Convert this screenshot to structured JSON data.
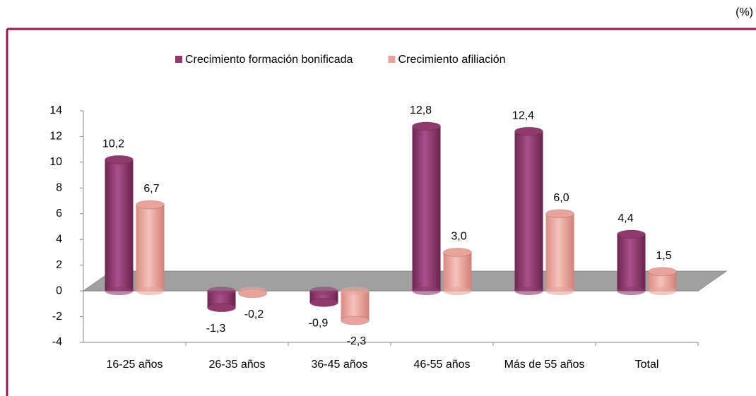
{
  "chart_data": {
    "type": "bar",
    "unit_label": "(%)",
    "categories": [
      "16-25 años",
      "26-35 años",
      "36-45 años",
      "46-55 años",
      "Más de 55 años",
      "Total"
    ],
    "series": [
      {
        "name": "Crecimiento formación bonificada",
        "color": "#8e3a6e",
        "values": [
          10.2,
          -1.3,
          -0.9,
          12.8,
          12.4,
          4.4
        ],
        "value_labels": [
          "10,2",
          "-1,3",
          "-0,9",
          "12,8",
          "12,4",
          "4,4"
        ]
      },
      {
        "name": "Crecimiento afiliación",
        "color": "#e8a49c",
        "values": [
          6.7,
          -0.2,
          -2.3,
          3.0,
          6.0,
          1.5
        ],
        "value_labels": [
          "6,7",
          "-0,2",
          "-2,3",
          "3,0",
          "6,0",
          "1,5"
        ]
      }
    ],
    "ylim": [
      -4,
      14
    ],
    "yticks": [
      -4,
      -2,
      0,
      2,
      4,
      6,
      8,
      10,
      12,
      14
    ],
    "legend": "top"
  }
}
